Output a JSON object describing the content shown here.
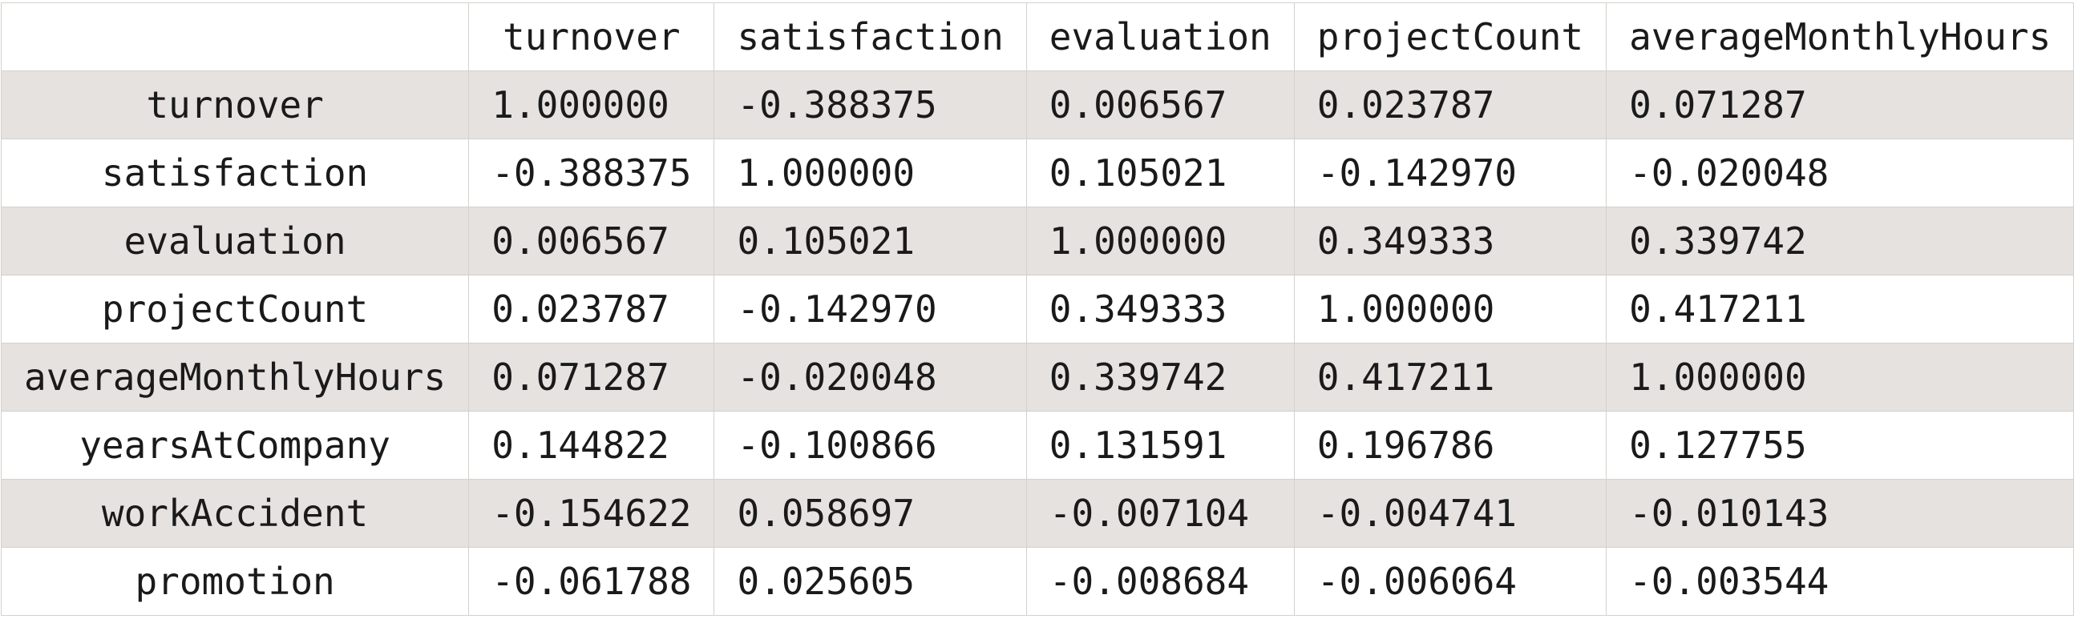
{
  "correlation_table": {
    "corner_label": "",
    "columns": [
      "turnover",
      "satisfaction",
      "evaluation",
      "projectCount",
      "averageMonthlyHours"
    ],
    "rows": [
      {
        "label": "turnover",
        "values": [
          "1.000000",
          "-0.388375",
          "0.006567",
          "0.023787",
          "0.071287"
        ]
      },
      {
        "label": "satisfaction",
        "values": [
          "-0.388375",
          "1.000000",
          "0.105021",
          "-0.142970",
          "-0.020048"
        ]
      },
      {
        "label": "evaluation",
        "values": [
          "0.006567",
          "0.105021",
          "1.000000",
          "0.349333",
          "0.339742"
        ]
      },
      {
        "label": "projectCount",
        "values": [
          "0.023787",
          "-0.142970",
          "0.349333",
          "1.000000",
          "0.417211"
        ]
      },
      {
        "label": "averageMonthlyHours",
        "values": [
          "0.071287",
          "-0.020048",
          "0.339742",
          "0.417211",
          "1.000000"
        ]
      },
      {
        "label": "yearsAtCompany",
        "values": [
          "0.144822",
          "-0.100866",
          "0.131591",
          "0.196786",
          "0.127755"
        ]
      },
      {
        "label": "workAccident",
        "values": [
          "-0.154622",
          "0.058697",
          "-0.007104",
          "-0.004741",
          "-0.010143"
        ]
      },
      {
        "label": "promotion",
        "values": [
          "-0.061788",
          "0.025605",
          "-0.008684",
          "-0.006064",
          "-0.003544"
        ]
      }
    ],
    "colors": {
      "stripe": "#e6e2df",
      "background": "#ffffff",
      "border": "#d4d0cc",
      "text": "#1a1a1a"
    }
  }
}
